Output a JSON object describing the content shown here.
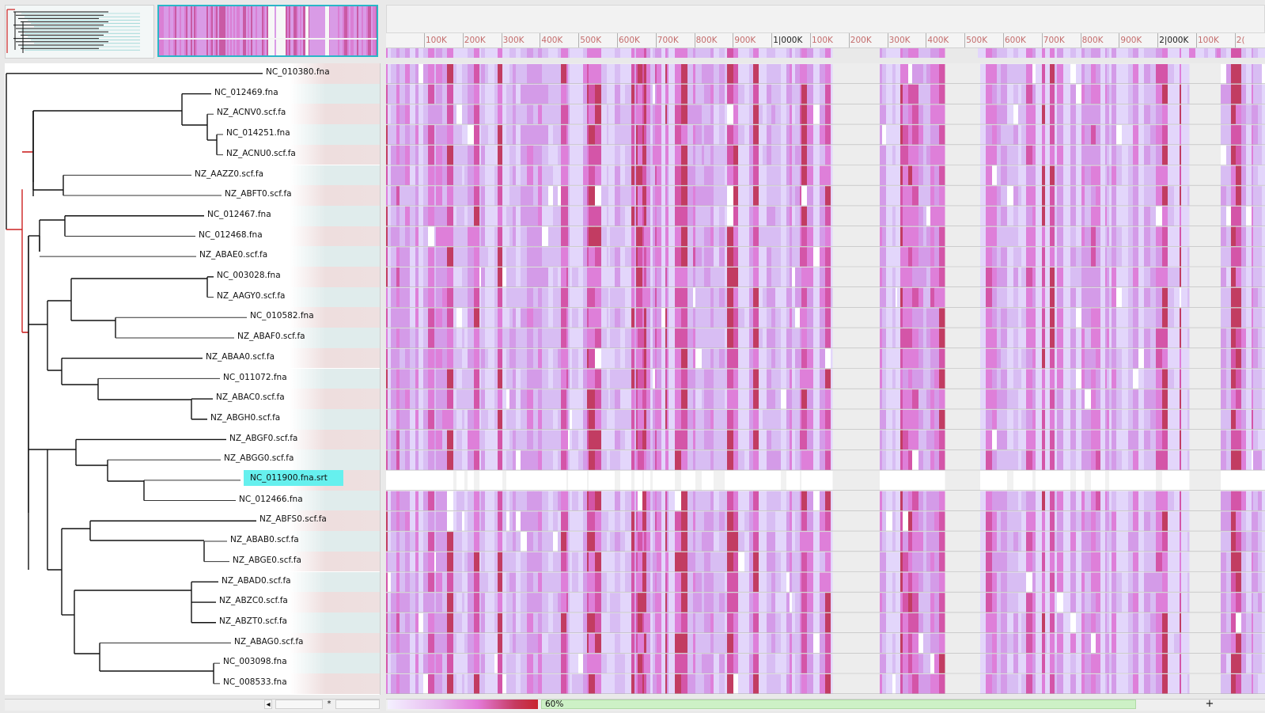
{
  "leaves": [
    {
      "label": "NC_010380.fna",
      "selected": false
    },
    {
      "label": "NC_012469.fna",
      "selected": false
    },
    {
      "label": "NZ_ACNV0.scf.fa",
      "selected": false
    },
    {
      "label": "NC_014251.fna",
      "selected": false
    },
    {
      "label": "NZ_ACNU0.scf.fa",
      "selected": false
    },
    {
      "label": "NZ_AAZZ0.scf.fa",
      "selected": false
    },
    {
      "label": "NZ_ABFT0.scf.fa",
      "selected": false
    },
    {
      "label": "NC_012467.fna",
      "selected": false
    },
    {
      "label": "NC_012468.fna",
      "selected": false
    },
    {
      "label": "NZ_ABAE0.scf.fa",
      "selected": false
    },
    {
      "label": "NC_003028.fna",
      "selected": false
    },
    {
      "label": "NZ_AAGY0.scf.fa",
      "selected": false
    },
    {
      "label": "NC_010582.fna",
      "selected": false
    },
    {
      "label": "NZ_ABAF0.scf.fa",
      "selected": false
    },
    {
      "label": "NZ_ABAA0.scf.fa",
      "selected": false
    },
    {
      "label": "NC_011072.fna",
      "selected": false
    },
    {
      "label": "NZ_ABAC0.scf.fa",
      "selected": false
    },
    {
      "label": "NZ_ABGH0.scf.fa",
      "selected": false
    },
    {
      "label": "NZ_ABGF0.scf.fa",
      "selected": false
    },
    {
      "label": "NZ_ABGG0.scf.fa",
      "selected": false
    },
    {
      "label": "NC_011900.fna.srt",
      "selected": true
    },
    {
      "label": "NC_012466.fna",
      "selected": false
    },
    {
      "label": "NZ_ABFS0.scf.fa",
      "selected": false
    },
    {
      "label": "NZ_ABAB0.scf.fa",
      "selected": false
    },
    {
      "label": "NZ_ABGE0.scf.fa",
      "selected": false
    },
    {
      "label": "NZ_ABAD0.scf.fa",
      "selected": false
    },
    {
      "label": "NZ_ABZC0.scf.fa",
      "selected": false
    },
    {
      "label": "NZ_ABZT0.scf.fa",
      "selected": false
    },
    {
      "label": "NZ_ABAG0.scf.fa",
      "selected": false
    },
    {
      "label": "NC_003098.fna",
      "selected": false
    },
    {
      "label": "NC_008533.fna",
      "selected": false
    }
  ],
  "ruler": {
    "ticks": [
      "100K",
      "200K",
      "300K",
      "400K",
      "500K",
      "600K",
      "700K",
      "800K",
      "900K",
      "1|000K",
      "100K",
      "200K",
      "300K",
      "400K",
      "500K",
      "600K",
      "700K",
      "800K",
      "900K",
      "2|000K",
      "100K",
      "2("
    ]
  },
  "status": {
    "progress_text": "60%",
    "progress_fraction": 0.6,
    "star_symbol": "*",
    "plus_symbol": "+",
    "left_arrow": "◂"
  },
  "colors": {
    "accent": "#2ab6c8",
    "selected_label": "#66f0ee",
    "heat_low": "#e6dcfb",
    "heat_mid": "#d98ee0",
    "heat_high": "#c8262f",
    "tree_highlight": "#cc2222"
  }
}
